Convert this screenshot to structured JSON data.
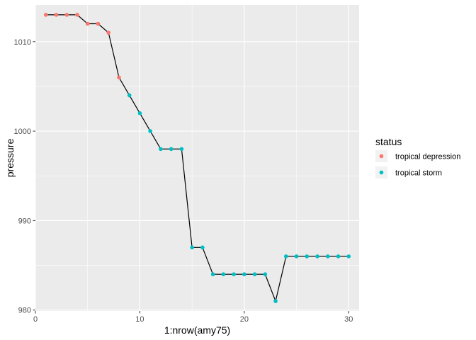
{
  "chart_data": {
    "type": "line",
    "xlabel": "1:nrow(amy75)",
    "ylabel": "pressure",
    "xlim": [
      0,
      31
    ],
    "ylim": [
      979.9,
      1014.1
    ],
    "x_ticks": [
      0,
      10,
      20,
      30
    ],
    "y_ticks": [
      980,
      990,
      1000,
      1010
    ],
    "grid": true,
    "legend": {
      "title": "status",
      "position": "right",
      "entries": [
        {
          "name": "tropical depression",
          "color": "#F8766D"
        },
        {
          "name": "tropical storm",
          "color": "#00BFC4"
        }
      ]
    },
    "line_color": "#000000",
    "x": [
      1,
      2,
      3,
      4,
      5,
      6,
      7,
      8,
      9,
      10,
      11,
      12,
      13,
      14,
      15,
      16,
      17,
      18,
      19,
      20,
      21,
      22,
      23,
      24,
      25,
      26,
      27,
      28,
      29,
      30
    ],
    "y": [
      1013,
      1013,
      1013,
      1013,
      1012,
      1012,
      1011,
      1006,
      1004,
      1002,
      1000,
      998,
      998,
      998,
      987,
      987,
      984,
      984,
      984,
      984,
      984,
      984,
      981,
      986,
      986,
      986,
      986,
      986,
      986,
      986
    ],
    "status": [
      "tropical depression",
      "tropical depression",
      "tropical depression",
      "tropical depression",
      "tropical depression",
      "tropical depression",
      "tropical depression",
      "tropical depression",
      "tropical storm",
      "tropical storm",
      "tropical storm",
      "tropical storm",
      "tropical storm",
      "tropical storm",
      "tropical storm",
      "tropical storm",
      "tropical storm",
      "tropical storm",
      "tropical storm",
      "tropical storm",
      "tropical storm",
      "tropical storm",
      "tropical storm",
      "tropical storm",
      "tropical storm",
      "tropical storm",
      "tropical storm",
      "tropical storm",
      "tropical storm",
      "tropical storm"
    ]
  }
}
